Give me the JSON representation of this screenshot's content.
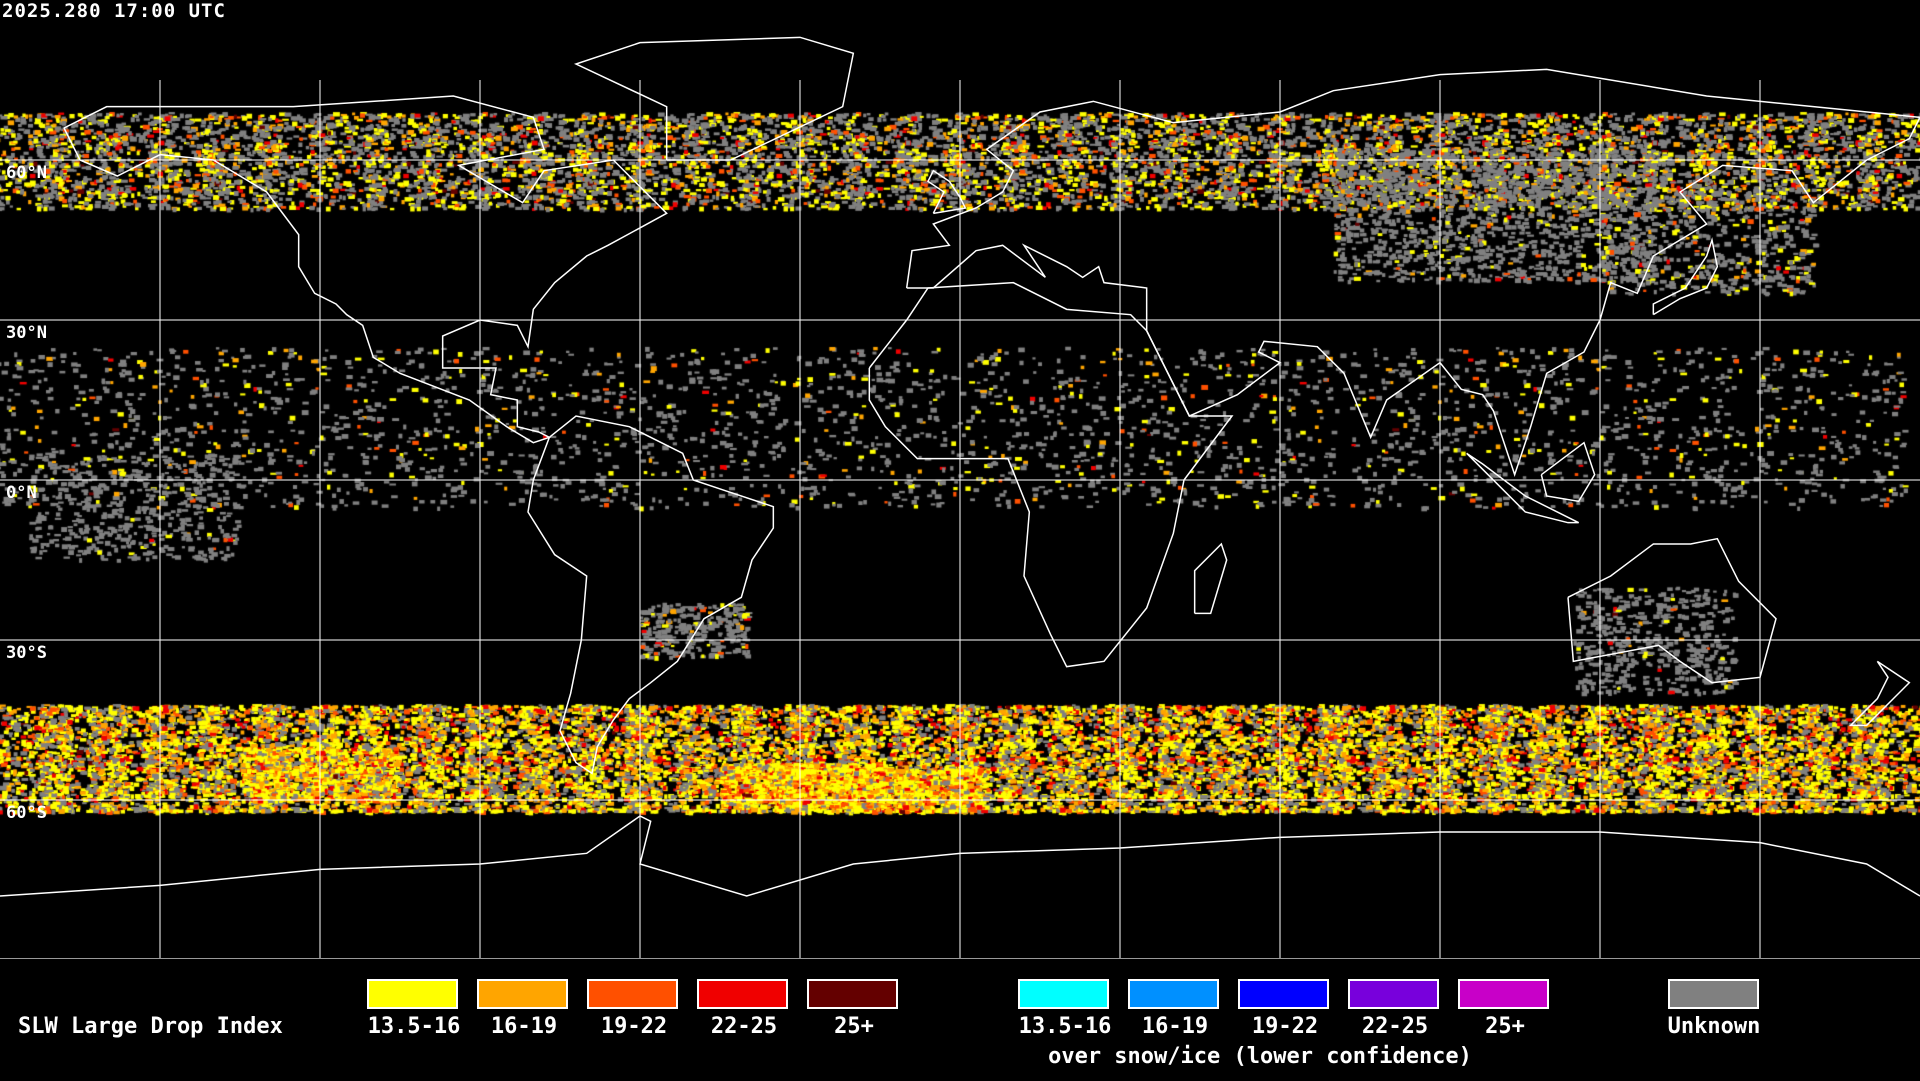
{
  "timestamp": "2025.280 17:00 UTC",
  "map": {
    "projection": "equirectangular",
    "gridlines_deg": 30,
    "lat_labels": [
      "60°N",
      "30°N",
      "0°N",
      "30°S",
      "60°S"
    ],
    "coastline_color": "#ffffff",
    "background": "#000000"
  },
  "legend": {
    "title": "SLW Large Drop Index",
    "primary": [
      {
        "label": "13.5-16",
        "color": "#ffff00"
      },
      {
        "label": "16-19",
        "color": "#ffa500"
      },
      {
        "label": "19-22",
        "color": "#ff5000"
      },
      {
        "label": "22-25",
        "color": "#f00000"
      },
      {
        "label": "25+",
        "color": "#640000"
      }
    ],
    "snow_ice": [
      {
        "label": "13.5-16",
        "color": "#00ffff"
      },
      {
        "label": "16-19",
        "color": "#0090ff"
      },
      {
        "label": "19-22",
        "color": "#0000ff"
      },
      {
        "label": "22-25",
        "color": "#7800dc"
      },
      {
        "label": "25+",
        "color": "#c800c8"
      }
    ],
    "snow_ice_caption": "over snow/ice (lower confidence)",
    "unknown": {
      "label": "Unknown",
      "color": "#808080"
    }
  }
}
